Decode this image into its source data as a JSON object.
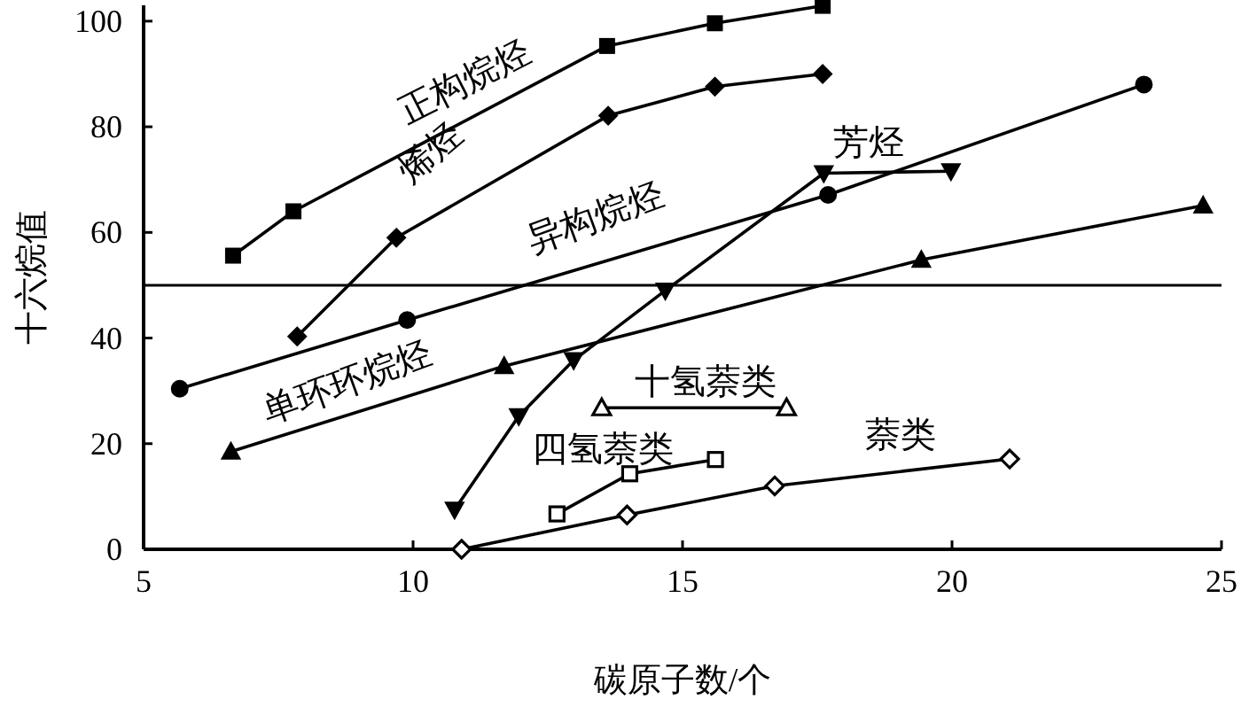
{
  "chart_data": {
    "type": "line",
    "xlabel": "碳原子数/个",
    "ylabel": "十六烷值",
    "xlim": [
      5,
      25
    ],
    "ylim": [
      0,
      103
    ],
    "xticks": [
      5,
      10,
      15,
      20,
      25
    ],
    "yticks": [
      0,
      20,
      40,
      60,
      80,
      100
    ],
    "line_style": "solid",
    "ref_lines": [
      {
        "axis": "y",
        "value": 50,
        "color": "#000000"
      }
    ],
    "series": [
      {
        "name": "正构烷烃",
        "color": "#000000",
        "marker": "square",
        "x": [
          6.66,
          7.78,
          13.6,
          15.6,
          17.6
        ],
        "values": [
          55.6,
          64,
          95.3,
          99.6,
          102.9
        ]
      },
      {
        "name": "烯烃",
        "color": "#000000",
        "marker": "diamond",
        "x": [
          7.85,
          9.69,
          13.62,
          15.6,
          17.6
        ],
        "values": [
          40.3,
          59,
          82.1,
          87.6,
          90
        ]
      },
      {
        "name": "异构烷烃",
        "color": "#000000",
        "marker": "circle",
        "x": [
          5.67,
          9.89,
          17.7,
          23.56
        ],
        "values": [
          30.4,
          43.4,
          67.1,
          88
        ]
      },
      {
        "name": "单环环烷烃",
        "color": "#000000",
        "marker": "triangle",
        "x": [
          6.62,
          11.69,
          19.43,
          24.66
        ],
        "values": [
          18.5,
          34.7,
          54.8,
          65.1
        ]
      },
      {
        "name": "芳烃",
        "color": "#000000",
        "marker": "triangle-down",
        "x": [
          10.77,
          11.96,
          12.98,
          14.68,
          17.62,
          19.98
        ],
        "values": [
          7.5,
          25.2,
          35.8,
          49,
          71.2,
          71.6
        ]
      },
      {
        "name": "十氢萘类",
        "color": "#000000",
        "marker": "triangle",
        "colors": [
          "#ffffff",
          "#ffffff"
        ],
        "x": [
          13.5,
          16.93
        ],
        "values": [
          26.8,
          26.8
        ]
      },
      {
        "name": "四氢萘类",
        "color": "#000000",
        "marker": "square",
        "colors": [
          "#ffffff",
          "#ffffff",
          "#ffffff"
        ],
        "x": [
          12.67,
          14.02,
          15.61
        ],
        "values": [
          6.7,
          14.3,
          17
        ]
      },
      {
        "name": "萘类",
        "color": "#000000",
        "marker": "diamond",
        "colors": [
          "#ffffff",
          "#ffffff",
          "#ffffff",
          "#ffffff"
        ],
        "x": [
          10.9,
          13.97,
          16.71,
          21.07
        ],
        "values": [
          0,
          6.5,
          12,
          17.1
        ]
      }
    ]
  }
}
